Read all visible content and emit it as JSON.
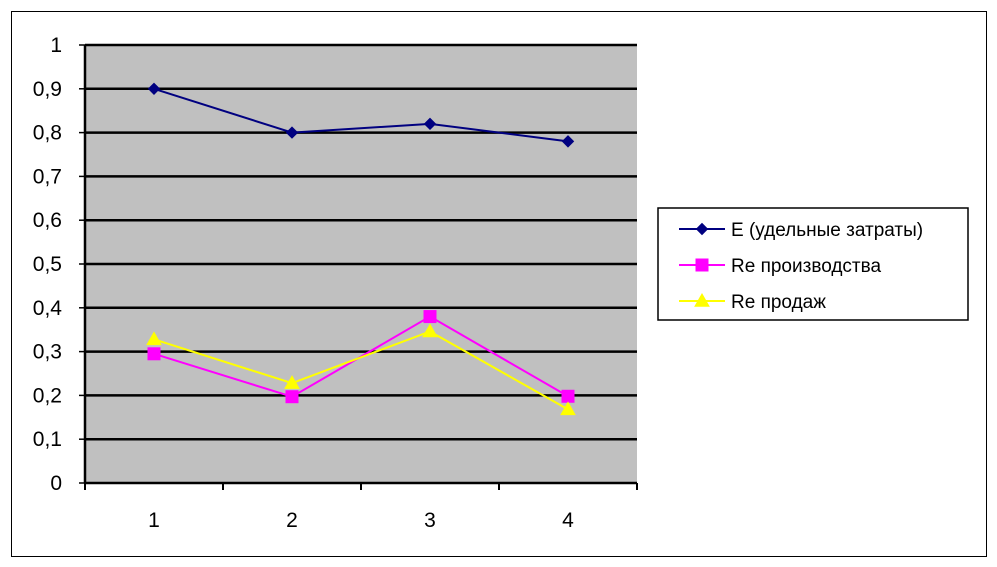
{
  "chart_data": {
    "type": "line",
    "categories": [
      "1",
      "2",
      "3",
      "4"
    ],
    "ylim": [
      0,
      1
    ],
    "yticks": [
      "0",
      "0,1",
      "0,2",
      "0,3",
      "0,4",
      "0,5",
      "0,6",
      "0,7",
      "0,8",
      "0,9",
      "1"
    ],
    "grid": true,
    "legend_position": "right",
    "plot_background": "#c0c0c0",
    "series": [
      {
        "name": "Е (удельные  затраты)",
        "values": [
          0.9,
          0.8,
          0.82,
          0.78
        ],
        "color": "#000080",
        "marker": "diamond"
      },
      {
        "name": "Re производства",
        "values": [
          0.295,
          0.197,
          0.38,
          0.198
        ],
        "color": "#ff00ff",
        "marker": "square"
      },
      {
        "name": "Re продаж",
        "values": [
          0.328,
          0.228,
          0.346,
          0.168
        ],
        "color": "#ffff00",
        "marker": "triangle"
      }
    ]
  }
}
